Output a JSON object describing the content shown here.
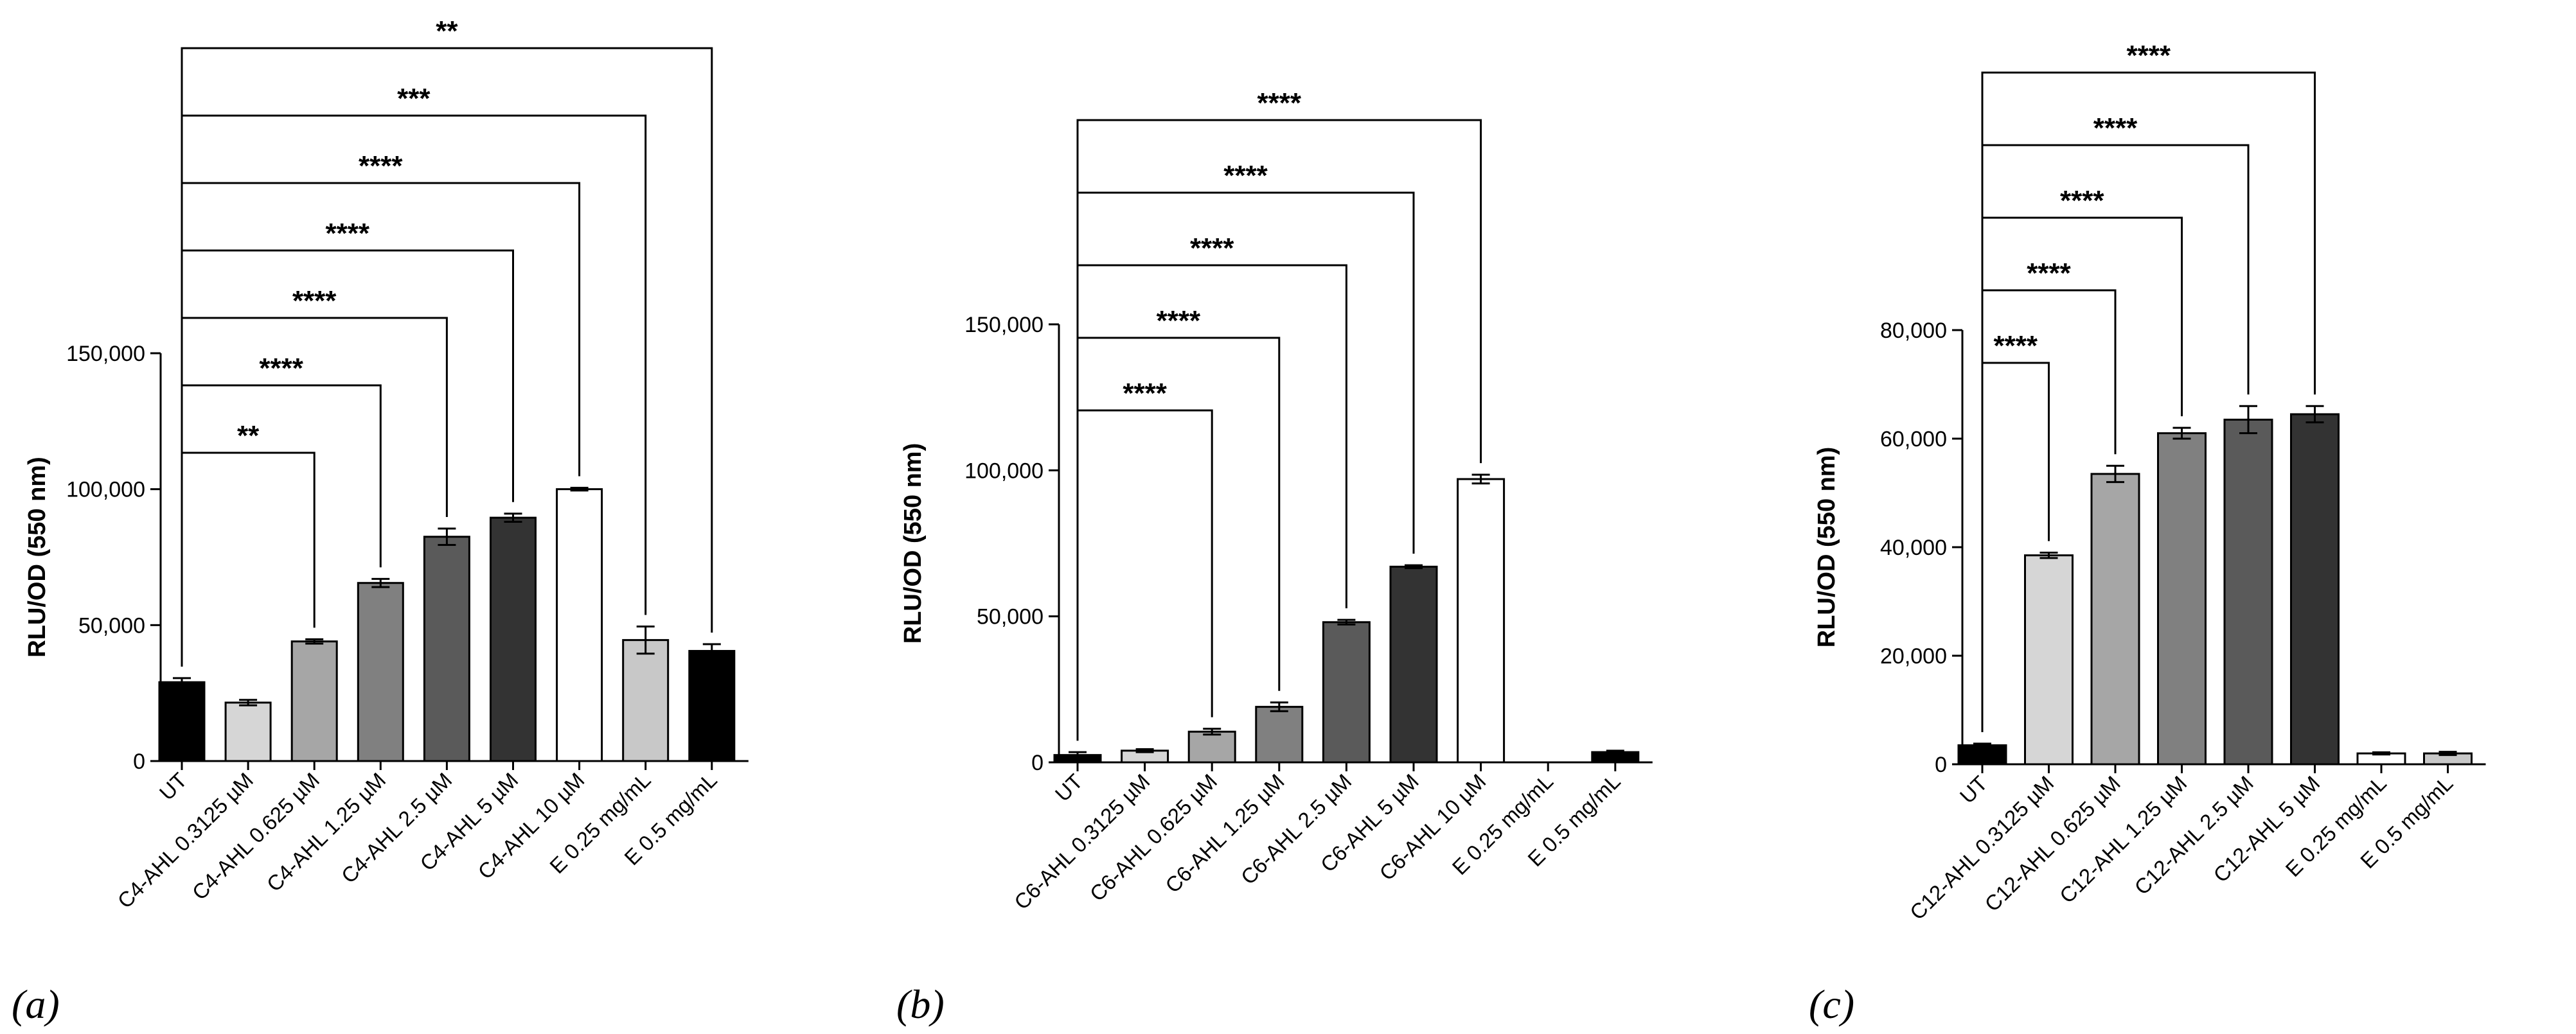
{
  "colors": {
    "black": "#000000",
    "white": "#ffffff",
    "light_gray": "#d6d6d6",
    "mid_gray": "#a6a6a6",
    "gray": "#808080",
    "dark_gray": "#5a5a5a",
    "darker_gray": "#333333",
    "lightest_gray": "#c8c8c8"
  },
  "chart_data": [
    {
      "type": "bar",
      "panel": "(a)",
      "ylabel": "RLU/OD (550 nm)",
      "ylim": [
        0,
        150000
      ],
      "yticks": [
        0,
        50000,
        100000,
        150000
      ],
      "ytick_labels": [
        "0",
        "50,000",
        "100,000",
        "150,000"
      ],
      "categories": [
        "UT",
        "C4-AHL 0.3125 µM",
        "C4-AHL 0.625 µM",
        "C4-AHL 1.25 µM",
        "C4-AHL 2.5 µM",
        "C4-AHL 5 µM",
        "C4-AHL 10 µM",
        "E 0.25 mg/mL",
        "E 0.5 mg/mL"
      ],
      "values": [
        29000,
        21500,
        44000,
        65500,
        82500,
        89500,
        100000,
        44500,
        40500
      ],
      "errors": [
        1500,
        1000,
        800,
        1500,
        3000,
        1500,
        500,
        5000,
        2500
      ],
      "fills": [
        "black",
        "light_gray",
        "mid_gray",
        "gray",
        "dark_gray",
        "darker_gray",
        "white",
        "lightest_gray",
        "black"
      ],
      "comparisons": [
        {
          "from": 0,
          "to": 2,
          "label": "**"
        },
        {
          "from": 0,
          "to": 3,
          "label": "****"
        },
        {
          "from": 0,
          "to": 4,
          "label": "****"
        },
        {
          "from": 0,
          "to": 5,
          "label": "****"
        },
        {
          "from": 0,
          "to": 6,
          "label": "****"
        },
        {
          "from": 0,
          "to": 7,
          "label": "***"
        },
        {
          "from": 0,
          "to": 8,
          "label": "**"
        }
      ]
    },
    {
      "type": "bar",
      "panel": "(b)",
      "ylabel": "RLU/OD (550 nm)",
      "ylim": [
        0,
        150000
      ],
      "yticks": [
        0,
        50000,
        100000,
        150000
      ],
      "ytick_labels": [
        "0",
        "50,000",
        "100,000",
        "150,000"
      ],
      "categories": [
        "UT",
        "C6-AHL 0.3125 µM",
        "C6-AHL 0.625 µM",
        "C6-AHL 1.25 µM",
        "C6-AHL 2.5 µM",
        "C6-AHL 5 µM",
        "C6-AHL 10 µM",
        "E 0.25 mg/mL",
        "E 0.5 mg/mL"
      ],
      "values": [
        2500,
        4000,
        10500,
        19000,
        48000,
        67000,
        97000,
        0,
        3500
      ],
      "errors": [
        1000,
        500,
        1000,
        1500,
        800,
        500,
        1500,
        0,
        500
      ],
      "fills": [
        "black",
        "light_gray",
        "mid_gray",
        "gray",
        "dark_gray",
        "darker_gray",
        "white",
        "lightest_gray",
        "black"
      ],
      "comparisons": [
        {
          "from": 0,
          "to": 2,
          "label": "****"
        },
        {
          "from": 0,
          "to": 3,
          "label": "****"
        },
        {
          "from": 0,
          "to": 4,
          "label": "****"
        },
        {
          "from": 0,
          "to": 5,
          "label": "****"
        },
        {
          "from": 0,
          "to": 6,
          "label": "****"
        }
      ]
    },
    {
      "type": "bar",
      "panel": "(c)",
      "ylabel": "RLU/OD (550 nm)",
      "ylim": [
        0,
        80000
      ],
      "yticks": [
        0,
        20000,
        40000,
        60000,
        80000
      ],
      "ytick_labels": [
        "0",
        "20,000",
        "40,000",
        "60,000",
        "80,000"
      ],
      "categories": [
        "UT",
        "C12-AHL 0.3125 µM",
        "C12-AHL 0.625 µM",
        "C12-AHL 1.25 µM",
        "C12-AHL 2.5 µM",
        "C12-AHL 5 µM",
        "E 0.25 mg/mL",
        "E 0.5 mg/mL"
      ],
      "values": [
        3500,
        38500,
        53500,
        61000,
        63500,
        64500,
        2000,
        2000
      ],
      "errors": [
        300,
        500,
        1500,
        1000,
        2500,
        1500,
        200,
        300
      ],
      "fills": [
        "black",
        "light_gray",
        "mid_gray",
        "gray",
        "dark_gray",
        "darker_gray",
        "white",
        "lightest_gray"
      ],
      "comparisons": [
        {
          "from": 0,
          "to": 1,
          "label": "****"
        },
        {
          "from": 0,
          "to": 2,
          "label": "****"
        },
        {
          "from": 0,
          "to": 3,
          "label": "****"
        },
        {
          "from": 0,
          "to": 4,
          "label": "****"
        },
        {
          "from": 0,
          "to": 5,
          "label": "****"
        }
      ]
    }
  ]
}
